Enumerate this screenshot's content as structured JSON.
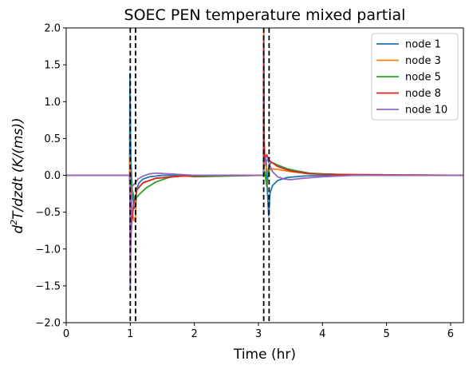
{
  "chart_data": {
    "type": "line",
    "title": "SOEC PEN temperature mixed partial",
    "xlabel": "Time (hr)",
    "ylabel": {
      "prefix": "d",
      "sup": "2",
      "rest": "T/dzdt (K/(ms))"
    },
    "xlim": [
      0,
      6.2
    ],
    "ylim": [
      -2.0,
      2.0
    ],
    "xticks": [
      0,
      1,
      2,
      3,
      4,
      5,
      6
    ],
    "xtick_labels": [
      "0",
      "1",
      "2",
      "3",
      "4",
      "5",
      "6"
    ],
    "yticks": [
      -2.0,
      -1.5,
      -1.0,
      -0.5,
      0.0,
      0.5,
      1.0,
      1.5,
      2.0
    ],
    "ytick_labels": [
      "−2.0",
      "−1.5",
      "−1.0",
      "−0.5",
      "0.0",
      "0.5",
      "1.0",
      "1.5",
      "2.0"
    ],
    "grid": false,
    "legend_position": "top-right",
    "vlines": [
      1.0,
      1.083,
      3.083,
      3.167
    ],
    "series": [
      {
        "name": "node 1",
        "color": "#1f77b4",
        "x": [
          0,
          0.99,
          0.995,
          1.0,
          1.005,
          1.01,
          1.03,
          1.06,
          1.083,
          1.1,
          1.14,
          1.2,
          1.3,
          1.5,
          2.0,
          3.08,
          3.083,
          3.1,
          3.12,
          3.14,
          3.16,
          3.167,
          3.18,
          3.22,
          3.3,
          3.45,
          3.7,
          4.2,
          6.2
        ],
        "y": [
          0,
          0,
          1.38,
          1.0,
          0.45,
          0.2,
          -0.2,
          -0.45,
          -0.42,
          -0.18,
          -0.1,
          -0.05,
          -0.02,
          0,
          0,
          0,
          0.03,
          0.28,
          0.2,
          -0.2,
          -0.55,
          -0.45,
          -0.25,
          -0.14,
          -0.07,
          -0.03,
          -0.01,
          0,
          0
        ]
      },
      {
        "name": "node 3",
        "color": "#ff7f0e",
        "x": [
          0,
          0.99,
          0.995,
          1.0,
          1.01,
          1.03,
          1.06,
          1.083,
          1.1,
          1.2,
          1.4,
          1.8,
          2.5,
          3.08,
          3.083,
          3.09,
          3.1,
          3.13,
          3.16,
          3.167,
          3.2,
          3.3,
          3.5,
          3.8,
          4.3,
          6.2
        ],
        "y": [
          0,
          0,
          0.25,
          0.05,
          -0.3,
          -0.5,
          -0.62,
          -0.55,
          -0.2,
          -0.1,
          -0.04,
          -0.01,
          0,
          0,
          1.95,
          0.5,
          0.15,
          0.1,
          0.0,
          0.06,
          0.09,
          0.08,
          0.05,
          0.02,
          0.01,
          0
        ]
      },
      {
        "name": "node 5",
        "color": "#2ca02c",
        "x": [
          0,
          0.99,
          1.0,
          1.02,
          1.06,
          1.083,
          1.1,
          1.15,
          1.25,
          1.4,
          1.6,
          1.8,
          2.0,
          2.5,
          3.08,
          3.083,
          3.1,
          3.13,
          3.167,
          3.2,
          3.3,
          3.45,
          3.6,
          3.8,
          4.0,
          4.3,
          4.7,
          6.2
        ],
        "y": [
          0,
          0,
          -0.05,
          -0.15,
          -0.3,
          -0.35,
          -0.3,
          -0.25,
          -0.17,
          -0.09,
          -0.03,
          0.0,
          -0.02,
          -0.01,
          0,
          0,
          0.05,
          -0.15,
          0.12,
          0.18,
          0.14,
          0.09,
          0.06,
          0.03,
          0.02,
          0.01,
          0,
          0
        ]
      },
      {
        "name": "node 8",
        "color": "#d62728",
        "x": [
          0,
          0.99,
          0.995,
          1.0,
          1.02,
          1.06,
          1.083,
          1.1,
          1.2,
          1.4,
          1.8,
          2.5,
          3.08,
          3.083,
          3.09,
          3.1,
          3.13,
          3.16,
          3.2,
          3.3,
          3.5,
          3.8,
          4.3,
          6.2
        ],
        "y": [
          0,
          0,
          -0.1,
          -1.1,
          -0.65,
          -0.35,
          -0.3,
          -0.2,
          -0.1,
          -0.04,
          -0.01,
          0,
          0,
          1.9,
          0.45,
          0.22,
          0.28,
          0.21,
          0.18,
          0.12,
          0.06,
          0.02,
          0.01,
          0
        ]
      },
      {
        "name": "node 10",
        "color": "#9467bd",
        "x": [
          0,
          0.99,
          0.995,
          1.0,
          1.005,
          1.01,
          1.03,
          1.06,
          1.083,
          1.12,
          1.2,
          1.3,
          1.4,
          1.6,
          2.0,
          3.08,
          3.083,
          3.1,
          3.12,
          3.15,
          3.17,
          3.22,
          3.3,
          3.4,
          3.5,
          3.7,
          4.0,
          4.5,
          6.2
        ],
        "y": [
          0,
          0,
          -0.3,
          -1.55,
          -1.2,
          -0.5,
          -0.15,
          -0.12,
          -0.1,
          -0.05,
          -0.01,
          0.02,
          0.03,
          0.02,
          0,
          0,
          0.05,
          0.25,
          0.18,
          0.22,
          0.15,
          0.05,
          -0.02,
          -0.05,
          -0.06,
          -0.04,
          -0.02,
          0,
          0
        ]
      }
    ]
  }
}
